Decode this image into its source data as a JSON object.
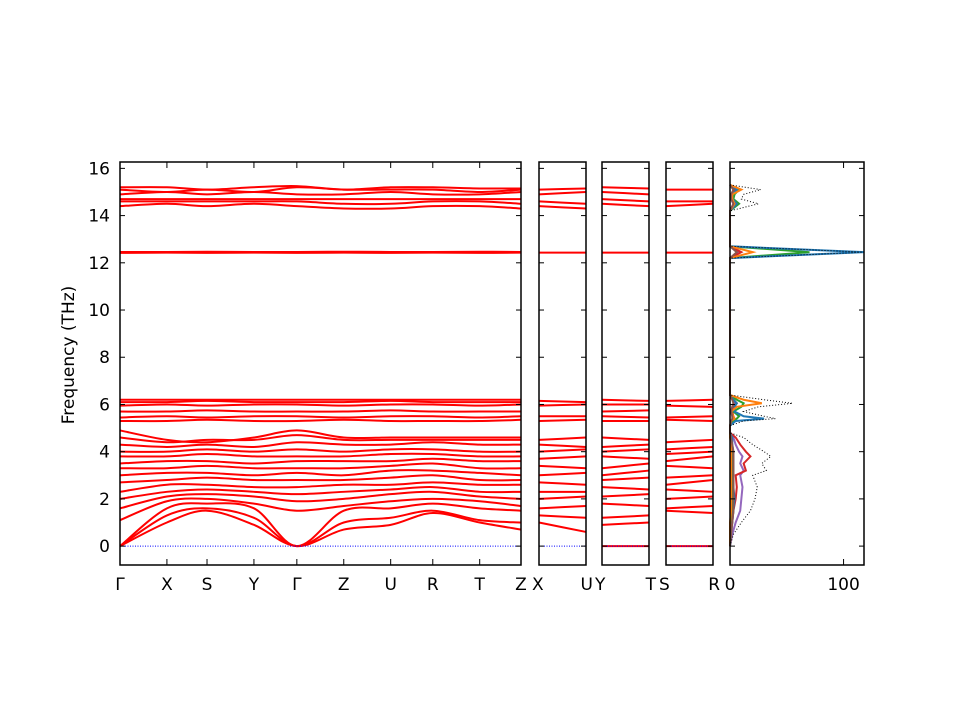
{
  "chart_data": {
    "type": "line",
    "ylabel": "Frequency (THz)",
    "ylim": [
      -0.8,
      16.27
    ],
    "yticks": [
      "0",
      "2",
      "4",
      "6",
      "8",
      "10",
      "12",
      "14",
      "16"
    ],
    "band_color": "#ff0000",
    "zero_line_color": "#0000ff",
    "panels": [
      {
        "labels": [
          "Γ",
          "X",
          "S",
          "Y",
          "Γ",
          "Z",
          "U",
          "R",
          "T",
          "Z"
        ],
        "kpos": [
          0,
          0.117,
          0.217,
          0.334,
          0.441,
          0.558,
          0.675,
          0.78,
          0.897,
          1
        ],
        "bands": [
          [
            0,
            1.0,
            1.5,
            0.9,
            0,
            0.7,
            0.9,
            1.4,
            1.0,
            0.7
          ],
          [
            0,
            1.3,
            1.6,
            1.2,
            0,
            1.0,
            1.2,
            1.5,
            1.1,
            1.0
          ],
          [
            0,
            1.6,
            1.8,
            1.6,
            0,
            1.5,
            1.6,
            1.8,
            1.6,
            1.5
          ],
          [
            1.1,
            1.9,
            2.0,
            1.8,
            1.5,
            1.7,
            1.9,
            2.0,
            1.9,
            1.7
          ],
          [
            1.6,
            2.1,
            2.2,
            2.1,
            1.9,
            2.0,
            2.2,
            2.3,
            2.1,
            2.0
          ],
          [
            2.0,
            2.3,
            2.4,
            2.3,
            2.2,
            2.3,
            2.4,
            2.5,
            2.3,
            2.3
          ],
          [
            2.3,
            2.6,
            2.6,
            2.5,
            2.5,
            2.6,
            2.6,
            2.7,
            2.6,
            2.6
          ],
          [
            2.7,
            2.8,
            2.9,
            2.8,
            2.8,
            2.8,
            2.9,
            3.0,
            2.8,
            2.8
          ],
          [
            3.0,
            3.1,
            3.1,
            3.0,
            3.1,
            3.0,
            3.2,
            3.2,
            3.1,
            3.0
          ],
          [
            3.3,
            3.3,
            3.4,
            3.3,
            3.3,
            3.3,
            3.4,
            3.5,
            3.3,
            3.3
          ],
          [
            3.5,
            3.6,
            3.6,
            3.5,
            3.6,
            3.6,
            3.6,
            3.7,
            3.6,
            3.6
          ],
          [
            3.8,
            3.8,
            3.9,
            3.8,
            3.8,
            3.8,
            3.9,
            3.9,
            3.8,
            3.8
          ],
          [
            4.0,
            4.0,
            4.1,
            4.0,
            4.1,
            4.0,
            4.1,
            4.1,
            4.0,
            4.0
          ],
          [
            4.3,
            4.2,
            4.3,
            4.2,
            4.4,
            4.3,
            4.3,
            4.4,
            4.3,
            4.3
          ],
          [
            4.6,
            4.4,
            4.5,
            4.5,
            4.7,
            4.5,
            4.5,
            4.5,
            4.5,
            4.5
          ],
          [
            4.9,
            4.5,
            4.4,
            4.6,
            4.9,
            4.6,
            4.6,
            4.6,
            4.6,
            4.6
          ],
          [
            5.3,
            5.3,
            5.35,
            5.3,
            5.3,
            5.35,
            5.3,
            5.3,
            5.3,
            5.35
          ],
          [
            5.45,
            5.5,
            5.45,
            5.5,
            5.5,
            5.45,
            5.5,
            5.5,
            5.45,
            5.5
          ],
          [
            5.7,
            5.7,
            5.75,
            5.7,
            5.7,
            5.7,
            5.75,
            5.7,
            5.7,
            5.7
          ],
          [
            5.95,
            6.0,
            5.95,
            6.0,
            6.0,
            5.95,
            6.0,
            6.0,
            5.95,
            6.0
          ],
          [
            6.1,
            6.1,
            6.15,
            6.1,
            6.1,
            6.1,
            6.15,
            6.1,
            6.1,
            6.1
          ],
          [
            6.2,
            6.2,
            6.2,
            6.2,
            6.2,
            6.2,
            6.2,
            6.2,
            6.2,
            6.2
          ],
          [
            12.42,
            12.43,
            12.42,
            12.43,
            12.42,
            12.43,
            12.42,
            12.43,
            12.42,
            12.43
          ],
          [
            12.46,
            12.46,
            12.47,
            12.46,
            12.46,
            12.47,
            12.46,
            12.46,
            12.47,
            12.46
          ],
          [
            14.4,
            14.5,
            14.4,
            14.5,
            14.4,
            14.3,
            14.3,
            14.4,
            14.4,
            14.3
          ],
          [
            14.6,
            14.6,
            14.6,
            14.6,
            14.6,
            14.5,
            14.5,
            14.6,
            14.6,
            14.5
          ],
          [
            14.7,
            14.7,
            14.7,
            14.7,
            14.7,
            14.7,
            14.7,
            14.7,
            14.7,
            14.7
          ],
          [
            14.9,
            15.0,
            14.9,
            15.0,
            14.9,
            14.9,
            15.0,
            14.9,
            14.9,
            15.0
          ],
          [
            15.1,
            15.0,
            15.1,
            15.0,
            15.2,
            15.1,
            15.1,
            15.1,
            15.0,
            15.1
          ],
          [
            15.2,
            15.2,
            15.1,
            15.2,
            15.25,
            15.1,
            15.2,
            15.2,
            15.15,
            15.15
          ]
        ]
      },
      {
        "labels": [
          "X",
          "U"
        ],
        "kpos": [
          0,
          1
        ],
        "bands": [
          [
            1.0,
            0.6
          ],
          [
            1.3,
            1.2
          ],
          [
            1.6,
            1.7
          ],
          [
            2.0,
            2.1
          ],
          [
            2.3,
            2.3
          ],
          [
            2.7,
            2.6
          ],
          [
            3.0,
            3.1
          ],
          [
            3.4,
            3.3
          ],
          [
            3.7,
            3.8
          ],
          [
            4.0,
            4.1
          ],
          [
            4.3,
            4.2
          ],
          [
            4.5,
            4.6
          ],
          [
            5.3,
            5.35
          ],
          [
            5.5,
            5.5
          ],
          [
            5.95,
            6.0
          ],
          [
            6.15,
            6.1
          ],
          [
            12.43,
            12.43
          ],
          [
            14.4,
            14.3
          ],
          [
            14.6,
            14.5
          ],
          [
            14.9,
            15.0
          ],
          [
            15.1,
            15.15
          ]
        ]
      },
      {
        "labels": [
          "Y",
          "T"
        ],
        "kpos": [
          0,
          1
        ],
        "bands": [
          [
            0,
            0
          ],
          [
            0.9,
            1.0
          ],
          [
            1.2,
            1.3
          ],
          [
            1.8,
            1.7
          ],
          [
            2.1,
            2.2
          ],
          [
            2.5,
            2.4
          ],
          [
            2.8,
            2.9
          ],
          [
            3.0,
            3.2
          ],
          [
            3.3,
            3.5
          ],
          [
            3.8,
            3.7
          ],
          [
            4.0,
            4.1
          ],
          [
            4.2,
            4.3
          ],
          [
            4.6,
            4.5
          ],
          [
            5.3,
            5.3
          ],
          [
            5.5,
            5.45
          ],
          [
            5.7,
            5.75
          ],
          [
            6.0,
            6.0
          ],
          [
            6.2,
            6.15
          ],
          [
            12.43,
            12.43
          ],
          [
            14.5,
            14.4
          ],
          [
            14.7,
            14.6
          ],
          [
            15.0,
            14.9
          ],
          [
            15.2,
            15.15
          ]
        ]
      },
      {
        "labels": [
          "S",
          "R"
        ],
        "kpos": [
          0,
          1
        ],
        "bands": [
          [
            0,
            0
          ],
          [
            1.5,
            1.4
          ],
          [
            1.6,
            1.7
          ],
          [
            2.0,
            2.1
          ],
          [
            2.4,
            2.3
          ],
          [
            2.6,
            2.8
          ],
          [
            2.9,
            3.0
          ],
          [
            3.4,
            3.3
          ],
          [
            3.6,
            3.8
          ],
          [
            3.9,
            4.0
          ],
          [
            4.1,
            4.2
          ],
          [
            4.4,
            4.5
          ],
          [
            5.35,
            5.3
          ],
          [
            5.45,
            5.5
          ],
          [
            5.95,
            5.9
          ],
          [
            6.15,
            6.2
          ],
          [
            12.43,
            12.43
          ],
          [
            14.4,
            14.5
          ],
          [
            14.6,
            14.6
          ],
          [
            15.1,
            15.1
          ]
        ]
      }
    ],
    "dos": {
      "xticks": [
        "0",
        "100"
      ],
      "xlim": [
        0,
        118
      ],
      "freq": [
        0,
        0.5,
        1,
        1.5,
        2,
        2.5,
        3,
        3.2,
        3.5,
        3.8,
        4,
        4.3,
        4.6,
        4.8,
        5.1,
        5.3,
        5.4,
        5.5,
        5.7,
        5.9,
        6.05,
        6.2,
        6.4,
        12.2,
        12.45,
        12.7,
        14.2,
        14.5,
        14.7,
        14.9,
        15.1,
        15.3
      ],
      "total": [
        0,
        3,
        10,
        18,
        22,
        24,
        20,
        32,
        28,
        36,
        30,
        20,
        12,
        0,
        0,
        12,
        40,
        30,
        12,
        25,
        55,
        30,
        0,
        0,
        118,
        0,
        0,
        25,
        10,
        12,
        27,
        0
      ],
      "projections": [
        {
          "color": "#9467bd",
          "values": [
            0,
            2,
            5,
            9,
            10,
            11,
            9,
            12,
            9,
            11,
            8,
            5,
            3,
            0,
            0,
            2,
            3,
            2,
            1,
            2,
            4,
            2,
            0,
            0,
            8,
            0,
            0,
            3,
            1,
            2,
            3,
            0
          ]
        },
        {
          "color": "#d62728",
          "values": [
            0,
            0,
            2,
            3,
            5,
            6,
            5,
            14,
            12,
            18,
            14,
            9,
            5,
            0,
            0,
            2,
            4,
            3,
            2,
            3,
            6,
            3,
            0,
            0,
            10,
            0,
            0,
            4,
            2,
            2,
            5,
            0
          ]
        },
        {
          "color": "#2ca02c",
          "values": [
            0,
            0,
            1,
            2,
            2,
            2,
            2,
            2,
            2,
            2,
            2,
            1,
            1,
            0,
            0,
            3,
            6,
            8,
            3,
            10,
            12,
            6,
            0,
            0,
            70,
            0,
            0,
            8,
            3,
            4,
            8,
            0
          ]
        },
        {
          "color": "#1f77b4",
          "values": [
            0,
            1,
            2,
            3,
            4,
            3,
            3,
            3,
            3,
            3,
            3,
            2,
            2,
            0,
            0,
            5,
            30,
            12,
            4,
            4,
            6,
            3,
            0,
            0,
            118,
            0,
            0,
            6,
            2,
            2,
            6,
            0
          ]
        },
        {
          "color": "#ff7f0e",
          "values": [
            0,
            0,
            0,
            1,
            1,
            1,
            1,
            1,
            1,
            1,
            1,
            1,
            0,
            0,
            0,
            1,
            4,
            3,
            1,
            6,
            28,
            12,
            0,
            0,
            20,
            0,
            0,
            4,
            2,
            2,
            10,
            0
          ]
        },
        {
          "color": "#8c564b",
          "values": [
            0,
            1,
            2,
            3,
            3,
            3,
            3,
            3,
            3,
            3,
            3,
            2,
            1,
            0,
            0,
            1,
            2,
            2,
            1,
            2,
            3,
            2,
            0,
            0,
            6,
            0,
            0,
            3,
            1,
            1,
            3,
            0
          ]
        }
      ]
    }
  }
}
